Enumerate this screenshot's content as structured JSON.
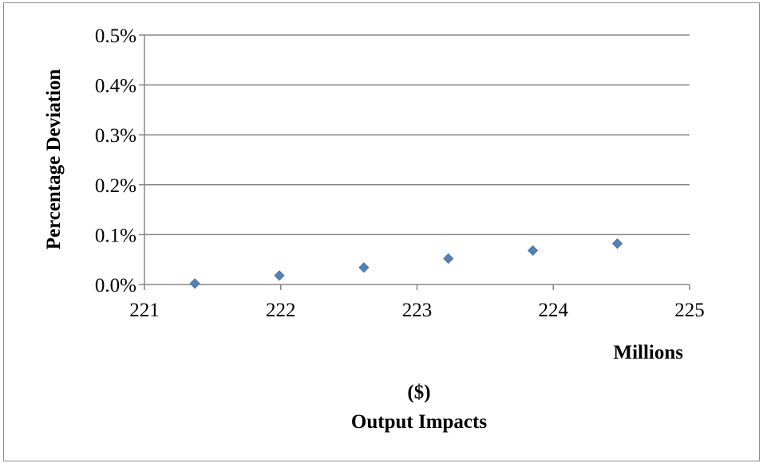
{
  "chart_data": {
    "type": "scatter",
    "xlabel": "Output Impacts",
    "xlabel_unit": "($)",
    "x_display_units": "Millions",
    "ylabel": "Percentage Deviation",
    "xlim": [
      221,
      225
    ],
    "ylim": [
      0,
      0.5
    ],
    "x_ticks": [
      "221",
      "222",
      "223",
      "224",
      "225"
    ],
    "y_ticks": [
      "0.0%",
      "0.1%",
      "0.2%",
      "0.3%",
      "0.4%",
      "0.5%"
    ],
    "grid": "horizontal",
    "legend": "none",
    "marker": "diamond",
    "series": [
      {
        "points": [
          {
            "x": 221.37,
            "y": 0.002
          },
          {
            "x": 221.99,
            "y": 0.018
          },
          {
            "x": 222.61,
            "y": 0.034
          },
          {
            "x": 223.23,
            "y": 0.052
          },
          {
            "x": 223.85,
            "y": 0.068
          },
          {
            "x": 224.47,
            "y": 0.082
          }
        ]
      }
    ],
    "colors": {
      "marker": "#4f81bd",
      "grid": "#868686",
      "axis": "#868686"
    }
  }
}
